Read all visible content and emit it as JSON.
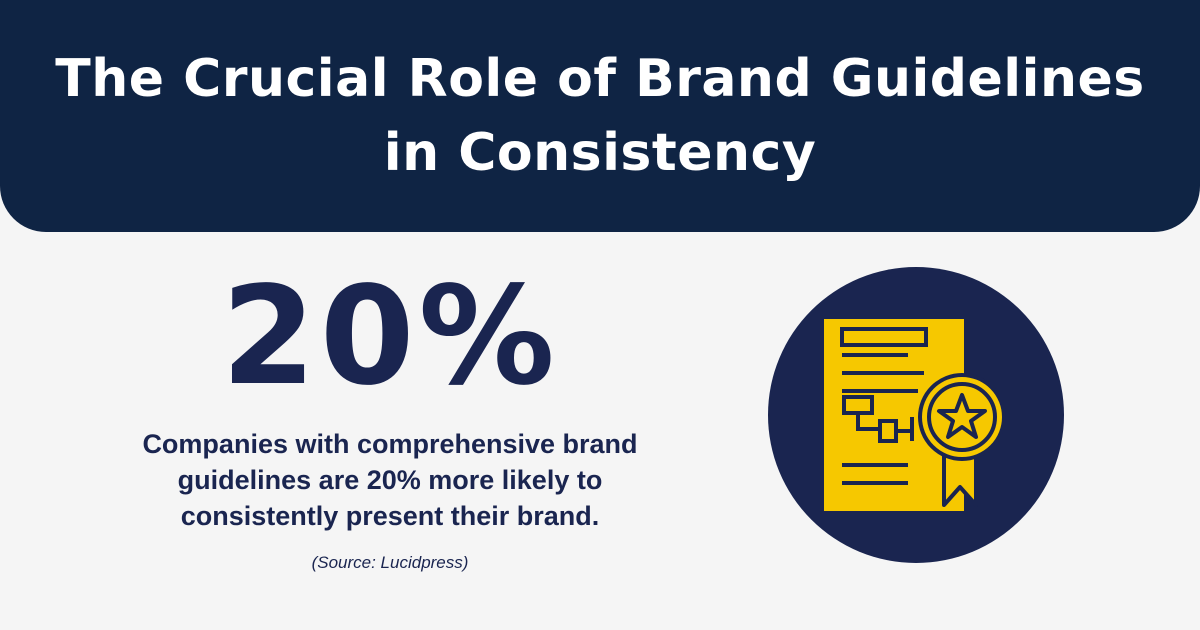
{
  "header": {
    "title": "The Crucial Role of Brand Guidelines in Consistency"
  },
  "stat": {
    "value": "20%",
    "description": "Companies with comprehensive brand guidelines are 20% more likely to consistently present their brand.",
    "source": "(Source: Lucidpress)"
  },
  "illustration": {
    "icon": "certificate-award-icon",
    "circle_color": "#1a2550",
    "accent_color": "#f6c800",
    "header_color": "#0f2444",
    "background_color": "#f5f5f5"
  }
}
